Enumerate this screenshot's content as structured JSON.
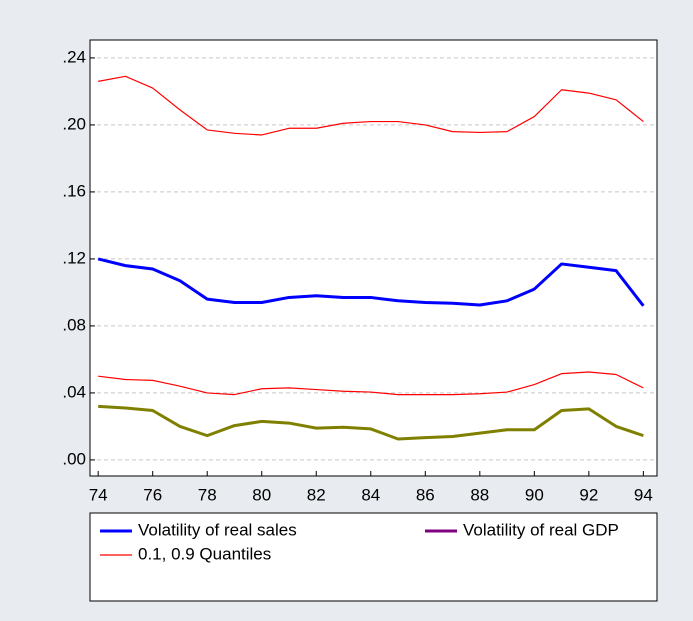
{
  "chart_data": {
    "type": "line",
    "x": [
      74,
      75,
      76,
      77,
      78,
      79,
      80,
      81,
      82,
      83,
      84,
      85,
      86,
      87,
      88,
      89,
      90,
      91,
      92,
      93,
      94
    ],
    "series": [
      {
        "name": "Volatility of real sales",
        "color": "#0000ff",
        "width": 3,
        "values": [
          0.12,
          0.116,
          0.114,
          0.107,
          0.096,
          0.094,
          0.094,
          0.097,
          0.098,
          0.097,
          0.097,
          0.095,
          0.094,
          0.0935,
          0.0925,
          0.095,
          0.102,
          0.117,
          0.115,
          0.113,
          0.092
        ]
      },
      {
        "name": "Volatility of real GDP",
        "color": "#808000",
        "legend_color": "#800080",
        "width": 3,
        "values": [
          0.032,
          0.031,
          0.0295,
          0.02,
          0.0145,
          0.0205,
          0.023,
          0.022,
          0.019,
          0.0195,
          0.0185,
          0.0125,
          0.0133,
          0.014,
          0.016,
          0.018,
          0.018,
          0.0295,
          0.0305,
          0.02,
          0.0145
        ]
      },
      {
        "name": "0.1, 0.9 Quantiles",
        "color": "#ff0000",
        "width": 1.2,
        "values": [
          0.226,
          0.229,
          0.222,
          0.209,
          0.197,
          0.195,
          0.194,
          0.198,
          0.198,
          0.201,
          0.202,
          0.202,
          0.2,
          0.196,
          0.1955,
          0.196,
          0.205,
          0.221,
          0.219,
          0.215,
          0.202
        ]
      },
      {
        "color": "#ff0000",
        "width": 1.2,
        "values": [
          0.05,
          0.048,
          0.0475,
          0.044,
          0.04,
          0.039,
          0.0425,
          0.043,
          0.042,
          0.041,
          0.0405,
          0.039,
          0.039,
          0.039,
          0.0395,
          0.0405,
          0.045,
          0.0515,
          0.0525,
          0.051,
          0.043
        ]
      }
    ],
    "xlim": [
      73.7,
      94.5
    ],
    "xticks": [
      74,
      76,
      78,
      80,
      82,
      84,
      86,
      88,
      90,
      92,
      94
    ],
    "ylim": [
      -0.0096,
      0.2507
    ],
    "yticks": [
      {
        "value": 0,
        "label": ".00"
      },
      {
        "value": 0.04,
        "label": ".04"
      },
      {
        "value": 0.08,
        "label": ".08"
      },
      {
        "value": 0.12,
        "label": ".12"
      },
      {
        "value": 0.16,
        "label": ".16"
      },
      {
        "value": 0.2,
        "label": ".20"
      },
      {
        "value": 0.24,
        "label": ".24"
      }
    ],
    "grid": true
  }
}
